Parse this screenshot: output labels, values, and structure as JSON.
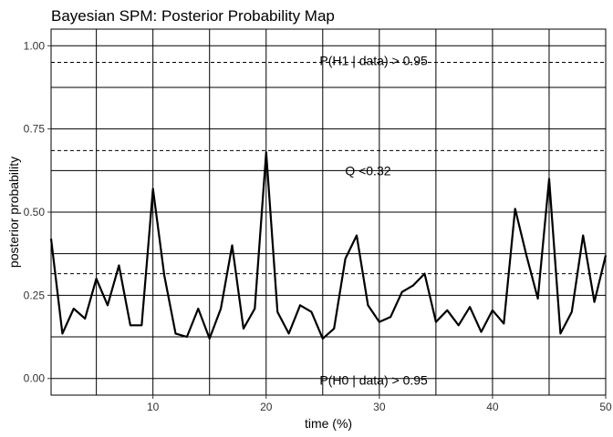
{
  "chart_data": {
    "type": "line",
    "title": "Bayesian SPM: Posterior Probability Map",
    "xlabel": "time (%)",
    "ylabel": "posterior probability",
    "xlim": [
      1,
      50
    ],
    "ylim": [
      -0.05,
      1.05
    ],
    "x_ticks": [
      10,
      20,
      30,
      40,
      50
    ],
    "x_tick_labels": [
      "10",
      "20",
      "30",
      "40",
      "50"
    ],
    "y_ticks": [
      0,
      0.25,
      0.5,
      0.75,
      1
    ],
    "y_tick_labels": [
      "0.00",
      "0.25",
      "0.50",
      "0.75",
      "1.00"
    ],
    "grid_x": [
      5,
      10,
      15,
      20,
      25,
      30,
      35,
      40,
      45,
      50
    ],
    "grid_y": [
      0,
      0.125,
      0.25,
      0.375,
      0.5,
      0.625,
      0.75,
      0.875,
      1
    ],
    "grid": true,
    "background": "#ffffff",
    "line_color": "#000000",
    "thresholds": [
      {
        "y": 0.95,
        "style": "dashed"
      },
      {
        "y": 0.685,
        "style": "dashed"
      },
      {
        "y": 0.315,
        "style": "dashed"
      }
    ],
    "annotations": [
      {
        "text": "P(H1 | data) > 0.95",
        "x": 29.5,
        "y": 0.955
      },
      {
        "text": "Q <0.32",
        "x": 29.0,
        "y": 0.625
      },
      {
        "text": "P(H0 | data) > 0.95",
        "x": 29.5,
        "y": -0.005
      }
    ],
    "x": [
      1,
      2,
      3,
      4,
      5,
      6,
      7,
      8,
      9,
      10,
      11,
      12,
      13,
      14,
      15,
      16,
      17,
      18,
      19,
      20,
      21,
      22,
      23,
      24,
      25,
      26,
      27,
      28,
      29,
      30,
      31,
      32,
      33,
      34,
      35,
      36,
      37,
      38,
      39,
      40,
      41,
      42,
      43,
      44,
      45,
      46,
      47,
      48,
      49,
      50
    ],
    "y": [
      0.42,
      0.135,
      0.21,
      0.18,
      0.3,
      0.22,
      0.34,
      0.16,
      0.16,
      0.57,
      0.31,
      0.135,
      0.125,
      0.21,
      0.12,
      0.21,
      0.4,
      0.15,
      0.21,
      0.68,
      0.2,
      0.135,
      0.22,
      0.2,
      0.12,
      0.15,
      0.36,
      0.43,
      0.22,
      0.17,
      0.185,
      0.26,
      0.28,
      0.315,
      0.17,
      0.205,
      0.16,
      0.215,
      0.14,
      0.205,
      0.165,
      0.51,
      0.37,
      0.24,
      0.6,
      0.135,
      0.2,
      0.43,
      0.23,
      0.37
    ]
  }
}
